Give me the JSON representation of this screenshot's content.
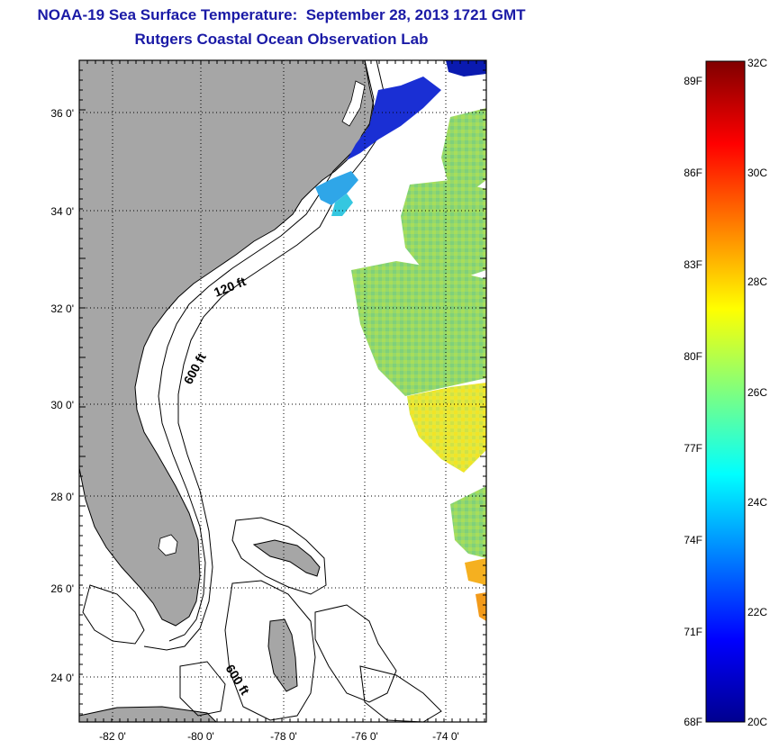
{
  "title": {
    "line1": "NOAA-19 Sea Surface Temperature:  September 28, 2013 1721 GMT",
    "line2": "Rutgers Coastal Ocean Observation Lab"
  },
  "map": {
    "lat_labels": [
      "36 0'",
      "34 0'",
      "32 0'",
      "30 0'",
      "28 0'",
      "26 0'",
      "24 0'"
    ],
    "lon_labels": [
      "-82 0'",
      "-80 0'",
      "-78 0'",
      "-76 0'",
      "-74 0'"
    ],
    "contour_labels": [
      "120 ft",
      "600 ft",
      "600 ft"
    ],
    "colors": {
      "land": "#a6a6a6",
      "water": "#ffffff",
      "grid": "#000000"
    }
  },
  "colorbar": {
    "celsius_labels": [
      "32C",
      "30C",
      "28C",
      "26C",
      "24C",
      "22C",
      "20C"
    ],
    "fahrenheit_labels": [
      "89F",
      "86F",
      "83F",
      "80F",
      "77F",
      "74F",
      "71F",
      "68F"
    ],
    "colormap": "jet"
  }
}
